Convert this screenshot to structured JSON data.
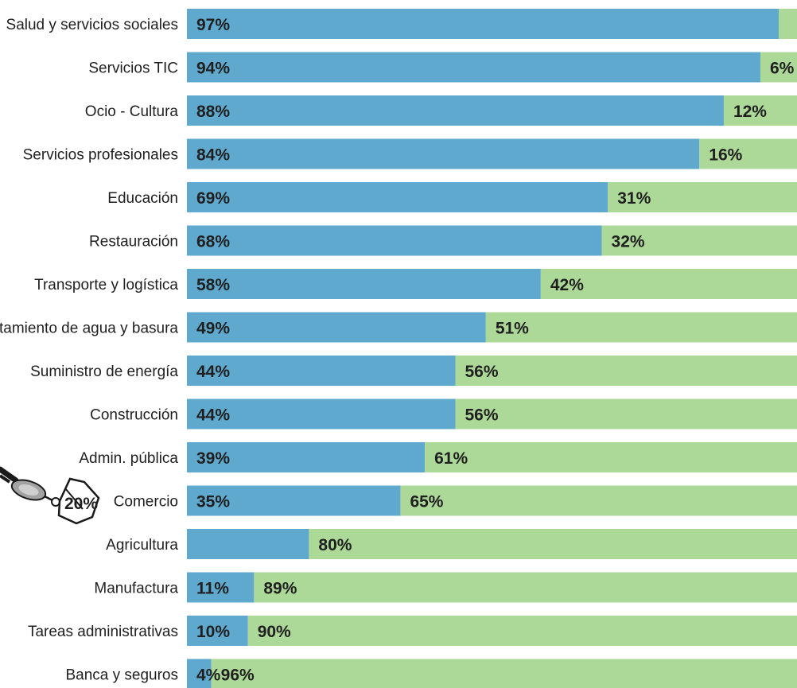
{
  "chart_data": {
    "type": "bar",
    "orientation": "horizontal",
    "stacked": true,
    "categories": [
      "Salud y servicios sociales",
      "Servicios TIC",
      "Ocio - Cultura",
      "Servicios profesionales",
      "Educación",
      "Restauración",
      "Transporte y logística",
      "Tratamiento de agua y basura",
      "Suministro de energía",
      "Construcción",
      "Admin. pública",
      "Comercio",
      "Agricultura",
      "Manufactura",
      "Tareas administrativas",
      "Banca y seguros"
    ],
    "series": [
      {
        "color": "#5fa9cf",
        "values": [
          97,
          94,
          88,
          84,
          69,
          68,
          58,
          49,
          44,
          44,
          39,
          35,
          20,
          11,
          10,
          4
        ],
        "labels": [
          "97%",
          "94%",
          "88%",
          "84%",
          "69%",
          "68%",
          "58%",
          "49%",
          "44%",
          "44%",
          "39%",
          "35%",
          "",
          "11%",
          "10%",
          "4%"
        ]
      },
      {
        "color": "#acd898",
        "values": [
          3,
          6,
          12,
          16,
          31,
          32,
          42,
          51,
          56,
          56,
          61,
          65,
          80,
          89,
          90,
          96
        ],
        "labels": [
          "",
          "6%",
          "12%",
          "16%",
          "31%",
          "32%",
          "42%",
          "51%",
          "56%",
          "56%",
          "61%",
          "65%",
          "80%",
          "89%",
          "90%",
          "96%"
        ]
      }
    ],
    "xlim": [
      0,
      100
    ],
    "grid": false,
    "legend": "none",
    "annotation": {
      "text": "20%",
      "icon": "robot-arm-icon"
    }
  }
}
